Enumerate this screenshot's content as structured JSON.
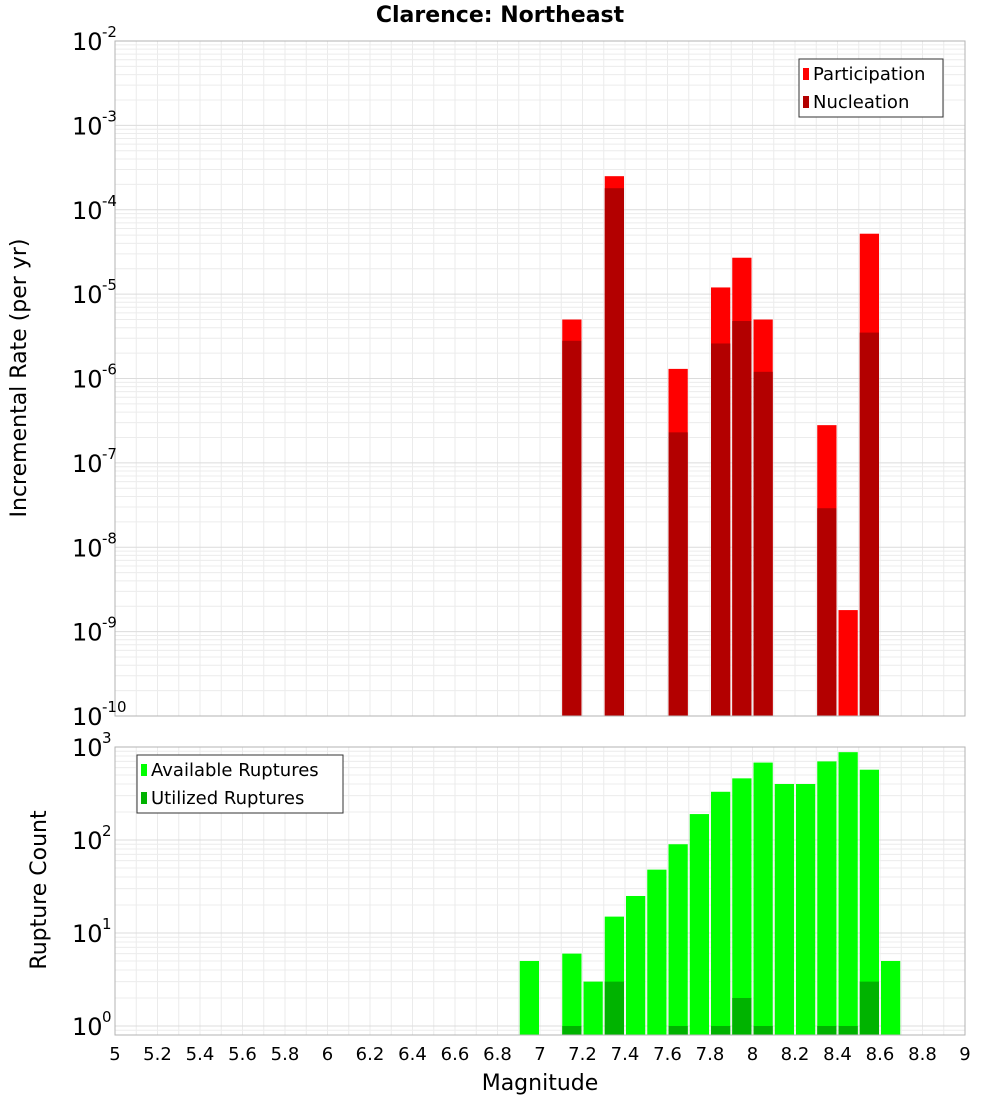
{
  "chart_data": [
    {
      "type": "bar",
      "title": "Clarence: Northeast",
      "xlabel": "",
      "ylabel": "Incremental Rate (per yr)",
      "yscale": "log",
      "ylim": [
        1e-10,
        0.01
      ],
      "xlim": [
        5,
        9
      ],
      "grid": true,
      "legend_position": "top-right",
      "bin_width": 0.1,
      "series": [
        {
          "name": "Participation",
          "color": "#ff0000",
          "points": [
            {
              "x": 7.15,
              "y": 5e-06
            },
            {
              "x": 7.35,
              "y": 0.00025
            },
            {
              "x": 7.65,
              "y": 1.3e-06
            },
            {
              "x": 7.85,
              "y": 1.2e-05
            },
            {
              "x": 7.95,
              "y": 2.7e-05
            },
            {
              "x": 8.05,
              "y": 5e-06
            },
            {
              "x": 8.35,
              "y": 2.8e-07
            },
            {
              "x": 8.45,
              "y": 1.8e-09
            },
            {
              "x": 8.55,
              "y": 5.2e-05
            }
          ]
        },
        {
          "name": "Nucleation",
          "color": "#b30000",
          "points": [
            {
              "x": 7.15,
              "y": 2.8e-06
            },
            {
              "x": 7.35,
              "y": 0.00018
            },
            {
              "x": 7.65,
              "y": 2.3e-07
            },
            {
              "x": 7.85,
              "y": 2.6e-06
            },
            {
              "x": 7.95,
              "y": 4.8e-06
            },
            {
              "x": 8.05,
              "y": 1.2e-06
            },
            {
              "x": 8.35,
              "y": 2.9e-08
            },
            {
              "x": 8.55,
              "y": 3.5e-06
            }
          ]
        }
      ]
    },
    {
      "type": "bar",
      "title": "",
      "xlabel": "Magnitude",
      "ylabel": "Rupture Count",
      "yscale": "log",
      "ylim": [
        0.8,
        1000
      ],
      "xlim": [
        5,
        9
      ],
      "grid": true,
      "legend_position": "top-left",
      "bin_width": 0.1,
      "x_ticks": [
        "5",
        "5.2",
        "5.4",
        "5.6",
        "5.8",
        "6",
        "6.2",
        "6.4",
        "6.6",
        "6.8",
        "7",
        "7.2",
        "7.4",
        "7.6",
        "7.8",
        "8",
        "8.2",
        "8.4",
        "8.6",
        "8.8",
        "9"
      ],
      "series": [
        {
          "name": "Available Ruptures",
          "color": "#00ff00",
          "points": [
            {
              "x": 6.95,
              "y": 5
            },
            {
              "x": 7.15,
              "y": 6
            },
            {
              "x": 7.25,
              "y": 3
            },
            {
              "x": 7.35,
              "y": 15
            },
            {
              "x": 7.45,
              "y": 25
            },
            {
              "x": 7.55,
              "y": 48
            },
            {
              "x": 7.65,
              "y": 90
            },
            {
              "x": 7.75,
              "y": 190
            },
            {
              "x": 7.85,
              "y": 330
            },
            {
              "x": 7.95,
              "y": 460
            },
            {
              "x": 8.05,
              "y": 680
            },
            {
              "x": 8.15,
              "y": 400
            },
            {
              "x": 8.25,
              "y": 400
            },
            {
              "x": 8.35,
              "y": 700
            },
            {
              "x": 8.45,
              "y": 880
            },
            {
              "x": 8.55,
              "y": 570
            },
            {
              "x": 8.65,
              "y": 5
            }
          ]
        },
        {
          "name": "Utilized Ruptures",
          "color": "#00b300",
          "points": [
            {
              "x": 7.15,
              "y": 1
            },
            {
              "x": 7.35,
              "y": 3
            },
            {
              "x": 7.65,
              "y": 1
            },
            {
              "x": 7.85,
              "y": 1
            },
            {
              "x": 7.95,
              "y": 2
            },
            {
              "x": 8.05,
              "y": 1
            },
            {
              "x": 8.35,
              "y": 1
            },
            {
              "x": 8.45,
              "y": 1
            },
            {
              "x": 8.55,
              "y": 3
            }
          ]
        }
      ]
    }
  ]
}
